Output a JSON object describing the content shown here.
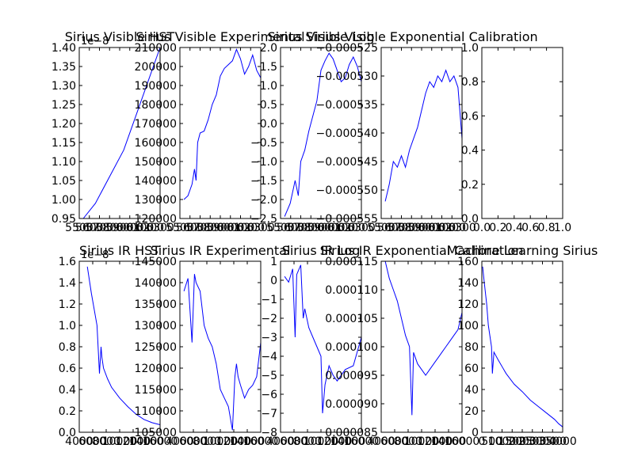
{
  "line_color": "#0000ff",
  "chart_data": [
    {
      "type": "line",
      "title": "Sirius Visible HST",
      "yticks": [
        "0.95",
        "1.00",
        "1.05",
        "1.10",
        "1.15",
        "1.20",
        "1.25",
        "1.30",
        "1.35",
        "1.40"
      ],
      "xticks": [
        "5500",
        "5600",
        "5700",
        "5800",
        "5900",
        "6000",
        "6100",
        "6200",
        "6300"
      ],
      "y_offset": "1e−8",
      "ylim": [
        0.95,
        1.4
      ],
      "series": [
        {
          "x": [
            0.05,
            0.2,
            0.4,
            0.55,
            0.7,
            0.85,
            1.0
          ],
          "y": [
            0.95,
            0.99,
            1.07,
            1.13,
            1.22,
            1.31,
            1.4
          ]
        }
      ]
    },
    {
      "type": "line",
      "title": "Sirius Visible Experimental",
      "yticks": [
        "120000",
        "130000",
        "140000",
        "150000",
        "160000",
        "170000",
        "180000",
        "190000",
        "200000",
        "210000"
      ],
      "xticks": [
        "5500",
        "5600",
        "5700",
        "5800",
        "5900",
        "6000",
        "6100",
        "6200",
        "6300"
      ],
      "ylim": [
        120000,
        210000
      ],
      "series": [
        {
          "x": [
            0.05,
            0.1,
            0.15,
            0.18,
            0.2,
            0.22,
            0.25,
            0.3,
            0.35,
            0.4,
            0.45,
            0.5,
            0.55,
            0.6,
            0.65,
            0.7,
            0.75,
            0.8,
            0.85,
            0.9,
            0.95,
            1.0
          ],
          "y": [
            130000,
            132000,
            138000,
            146000,
            140000,
            160000,
            165000,
            166000,
            172000,
            180000,
            185000,
            195000,
            199000,
            201000,
            203000,
            209000,
            204000,
            196000,
            200000,
            206000,
            198000,
            194000
          ]
        }
      ]
    },
    {
      "type": "line",
      "title": "Sirius Visible Log",
      "yticks": [
        "−2.5",
        "−2.0",
        "−1.5",
        "−1.0",
        "−0.5",
        "0.0",
        "0.5",
        "1.0",
        "1.5",
        "2.0"
      ],
      "xticks": [
        "5500",
        "5600",
        "5700",
        "5800",
        "5900",
        "6000",
        "6100",
        "6200",
        "6300"
      ],
      "ylim": [
        -2.5,
        2.0
      ],
      "series": [
        {
          "x": [
            0.05,
            0.12,
            0.18,
            0.22,
            0.25,
            0.3,
            0.35,
            0.4,
            0.45,
            0.5,
            0.55,
            0.6,
            0.65,
            0.7,
            0.75,
            0.8,
            0.85,
            0.9,
            0.95,
            1.0
          ],
          "y": [
            -2.45,
            -2.1,
            -1.5,
            -1.9,
            -1.0,
            -0.7,
            -0.2,
            0.2,
            0.6,
            1.4,
            1.65,
            1.85,
            1.7,
            1.4,
            1.1,
            1.2,
            1.55,
            1.75,
            1.5,
            1.1
          ]
        }
      ]
    },
    {
      "type": "line",
      "title": "Sirius Visible Exponential Calibration",
      "yticks": [
        "−0.000555",
        "−0.000550",
        "−0.000545",
        "−0.000540",
        "−0.000535",
        "−0.000530",
        "−0.000525"
      ],
      "xticks": [
        "5500",
        "5600",
        "5700",
        "5800",
        "5900",
        "6000",
        "6100",
        "6200",
        "6300"
      ],
      "ylim": [
        -0.000555,
        -0.000525
      ],
      "series": [
        {
          "x": [
            0.05,
            0.1,
            0.15,
            0.2,
            0.25,
            0.3,
            0.35,
            0.4,
            0.45,
            0.5,
            0.55,
            0.6,
            0.65,
            0.7,
            0.75,
            0.8,
            0.85,
            0.9,
            0.95,
            1.0
          ],
          "y": [
            -0.000552,
            -0.000549,
            -0.000545,
            -0.000546,
            -0.000544,
            -0.000546,
            -0.000543,
            -0.000541,
            -0.000539,
            -0.000536,
            -0.000533,
            -0.000531,
            -0.000532,
            -0.00053,
            -0.000531,
            -0.000529,
            -0.000531,
            -0.00053,
            -0.000532,
            -0.000541
          ]
        }
      ]
    },
    {
      "type": "line",
      "title": "",
      "yticks": [
        "0.0",
        "0.2",
        "0.4",
        "0.6",
        "0.8",
        "1.0"
      ],
      "xticks": [
        "0.0",
        "0.2",
        "0.4",
        "0.6",
        "0.8",
        "1.0"
      ],
      "ylim": [
        0,
        1
      ],
      "series": []
    },
    {
      "type": "line",
      "title": "Sirius IR HST",
      "yticks": [
        "0.0",
        "0.2",
        "0.4",
        "0.6",
        "0.8",
        "1.0",
        "1.2",
        "1.4",
        "1.6"
      ],
      "xticks": [
        "4000",
        "6000",
        "8000",
        "10000",
        "12000",
        "14000",
        "16000"
      ],
      "y_offset": "1e−8",
      "ylim": [
        0.0,
        1.6
      ],
      "series": [
        {
          "x": [
            0.1,
            0.15,
            0.22,
            0.25,
            0.27,
            0.28,
            0.3,
            0.35,
            0.4,
            0.5,
            0.6,
            0.7,
            0.8,
            0.9,
            1.0
          ],
          "y": [
            1.55,
            1.3,
            1.0,
            0.55,
            0.8,
            0.7,
            0.6,
            0.5,
            0.42,
            0.32,
            0.24,
            0.17,
            0.12,
            0.09,
            0.07
          ]
        }
      ]
    },
    {
      "type": "line",
      "title": "Sirius IR Experimental",
      "yticks": [
        "105000",
        "110000",
        "115000",
        "120000",
        "125000",
        "130000",
        "135000",
        "140000",
        "145000"
      ],
      "xticks": [
        "4000",
        "6000",
        "8000",
        "10000",
        "12000",
        "14000",
        "16000"
      ],
      "ylim": [
        105000,
        145000
      ],
      "series": [
        {
          "x": [
            0.05,
            0.1,
            0.15,
            0.18,
            0.2,
            0.25,
            0.3,
            0.35,
            0.4,
            0.45,
            0.5,
            0.55,
            0.6,
            0.65,
            0.68,
            0.7,
            0.72,
            0.75,
            0.8,
            0.85,
            0.9,
            0.95,
            1.0
          ],
          "y": [
            138000,
            141000,
            126000,
            142000,
            140000,
            138000,
            130000,
            127000,
            125000,
            121000,
            115000,
            113000,
            111000,
            105500,
            118000,
            121000,
            118000,
            116000,
            113000,
            115000,
            116000,
            118000,
            126000
          ]
        }
      ]
    },
    {
      "type": "line",
      "title": "Sirius IR Log",
      "yticks": [
        "−8",
        "−7",
        "−6",
        "−5",
        "−4",
        "−3",
        "−2",
        "−1",
        "0",
        "1"
      ],
      "xticks": [
        "4000",
        "6000",
        "8000",
        "10000",
        "12000",
        "14000",
        "16000"
      ],
      "ylim": [
        -8,
        1
      ],
      "series": [
        {
          "x": [
            0.05,
            0.1,
            0.15,
            0.18,
            0.2,
            0.25,
            0.28,
            0.3,
            0.35,
            0.4,
            0.45,
            0.5,
            0.52,
            0.55,
            0.6,
            0.65,
            0.7,
            0.8,
            0.9,
            1.0
          ],
          "y": [
            0.2,
            -0.1,
            0.6,
            -3.0,
            0.3,
            0.8,
            -2.0,
            -1.5,
            -2.5,
            -3.0,
            -3.5,
            -4.0,
            -7.0,
            -5.5,
            -4.5,
            -5.0,
            -5.3,
            -4.7,
            -4.5,
            -3.0
          ]
        }
      ]
    },
    {
      "type": "line",
      "title": "Sirius IR Exponential Calibration",
      "yticks": [
        "0.000085",
        "0.000090",
        "0.000095",
        "0.000100",
        "0.000105",
        "0.000110",
        "0.000115"
      ],
      "xticks": [
        "4000",
        "6000",
        "8000",
        "10000",
        "12000",
        "14000",
        "16000"
      ],
      "ylim": [
        8.5e-05,
        0.000115
      ],
      "series": [
        {
          "x": [
            0.05,
            0.1,
            0.15,
            0.2,
            0.25,
            0.3,
            0.35,
            0.38,
            0.4,
            0.45,
            0.5,
            0.55,
            0.6,
            0.65,
            0.7,
            0.75,
            0.8,
            0.85,
            0.9,
            0.95,
            1.0
          ],
          "y": [
            0.000115,
            0.000112,
            0.00011,
            0.000108,
            0.000105,
            0.000102,
            0.0001,
            8.8e-05,
            9.9e-05,
            9.7e-05,
            9.6e-05,
            9.5e-05,
            9.6e-05,
            9.7e-05,
            9.8e-05,
            9.9e-05,
            0.0001,
            0.000101,
            0.000102,
            0.000103,
            0.000106
          ]
        }
      ]
    },
    {
      "type": "line",
      "title": "Machine Learning Sirius",
      "yticks": [
        "0",
        "20",
        "40",
        "60",
        "80",
        "100",
        "120",
        "140",
        "160"
      ],
      "xticks": [
        "0",
        "500",
        "1000",
        "1500",
        "2000",
        "2500",
        "3000",
        "3500",
        "4000"
      ],
      "ylim": [
        0,
        160
      ],
      "series": [
        {
          "x": [
            0.01,
            0.03,
            0.06,
            0.08,
            0.1,
            0.12,
            0.13,
            0.15,
            0.2,
            0.3,
            0.4,
            0.5,
            0.6,
            0.7,
            0.8,
            0.9,
            0.95,
            1.0
          ],
          "y": [
            155,
            140,
            120,
            100,
            90,
            80,
            55,
            75,
            68,
            55,
            45,
            38,
            30,
            24,
            18,
            12,
            8,
            5
          ]
        }
      ]
    }
  ]
}
